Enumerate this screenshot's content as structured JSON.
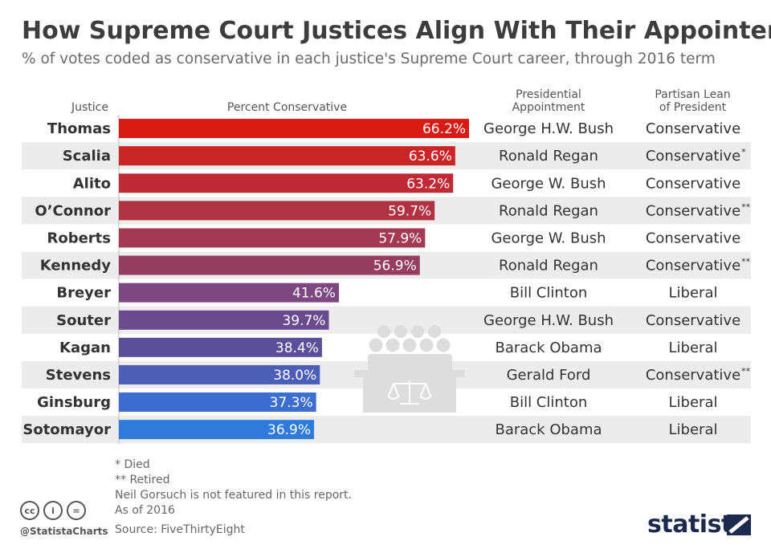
{
  "header": {
    "title": "How Supreme Court Justices Align With Their Appointer",
    "subtitle": "% of votes coded as conservative in each justice's Supreme Court career, through 2016 term"
  },
  "columns": {
    "justice": "Justice",
    "percent": "Percent Conservative",
    "appointment": [
      "Presidential",
      "Appointment"
    ],
    "lean": [
      "Partisan Lean",
      "of President"
    ]
  },
  "chart_data": {
    "type": "bar",
    "orientation": "horizontal",
    "title": "How Supreme Court Justices Align With Their Appointer",
    "xlabel": "Percent Conservative",
    "ylabel": "Justice",
    "xlim": [
      0,
      100
    ],
    "categories": [
      "Thomas",
      "Scalia",
      "Alito",
      "O’Connor",
      "Roberts",
      "Kennedy",
      "Breyer",
      "Souter",
      "Kagan",
      "Stevens",
      "Ginsburg",
      "Sotomayor"
    ],
    "values": [
      66.2,
      63.6,
      63.2,
      59.7,
      57.9,
      56.9,
      41.6,
      39.7,
      38.4,
      38.0,
      37.3,
      36.9
    ],
    "value_labels": [
      "66.2%",
      "63.6%",
      "63.2%",
      "59.7%",
      "57.9%",
      "56.9%",
      "41.6%",
      "39.7%",
      "38.4%",
      "38.0%",
      "37.3%",
      "36.9%"
    ],
    "colors": [
      "#d91a12",
      "#cc2525",
      "#c02a35",
      "#b13342",
      "#a43a52",
      "#953d5e",
      "#7d4781",
      "#6b4b8e",
      "#5b4f9a",
      "#4d5eb7",
      "#3c6ed0",
      "#2f7bdd"
    ],
    "appointments": [
      "George H.W. Bush",
      "Ronald Regan",
      "George W. Bush",
      "Ronald Regan",
      "George W. Bush",
      "Ronald Regan",
      "Bill Clinton",
      "George H.W. Bush",
      "Barack Obama",
      "Gerald Ford",
      "Bill Clinton",
      "Barack Obama"
    ],
    "leans": [
      "Conservative",
      "Conservative",
      "Conservative",
      "Conservative",
      "Conservative",
      "Conservative",
      "Liberal",
      "Conservative",
      "Liberal",
      "Conservative",
      "Liberal",
      "Liberal"
    ],
    "lean_marks": [
      "",
      "*",
      "",
      "**",
      "",
      "**",
      "",
      "",
      "",
      "**",
      "",
      ""
    ]
  },
  "notes": {
    "died": "*   Died",
    "retired": "** Retired",
    "gorsuch": "Neil Gorsuch is not featured in this report.",
    "as_of": "As of 2016"
  },
  "footer": {
    "cc_labels": [
      "cc",
      "i",
      "="
    ],
    "handle": "@StatistaCharts",
    "source": "Source: FiveThirtyEight",
    "brand": "statista"
  }
}
